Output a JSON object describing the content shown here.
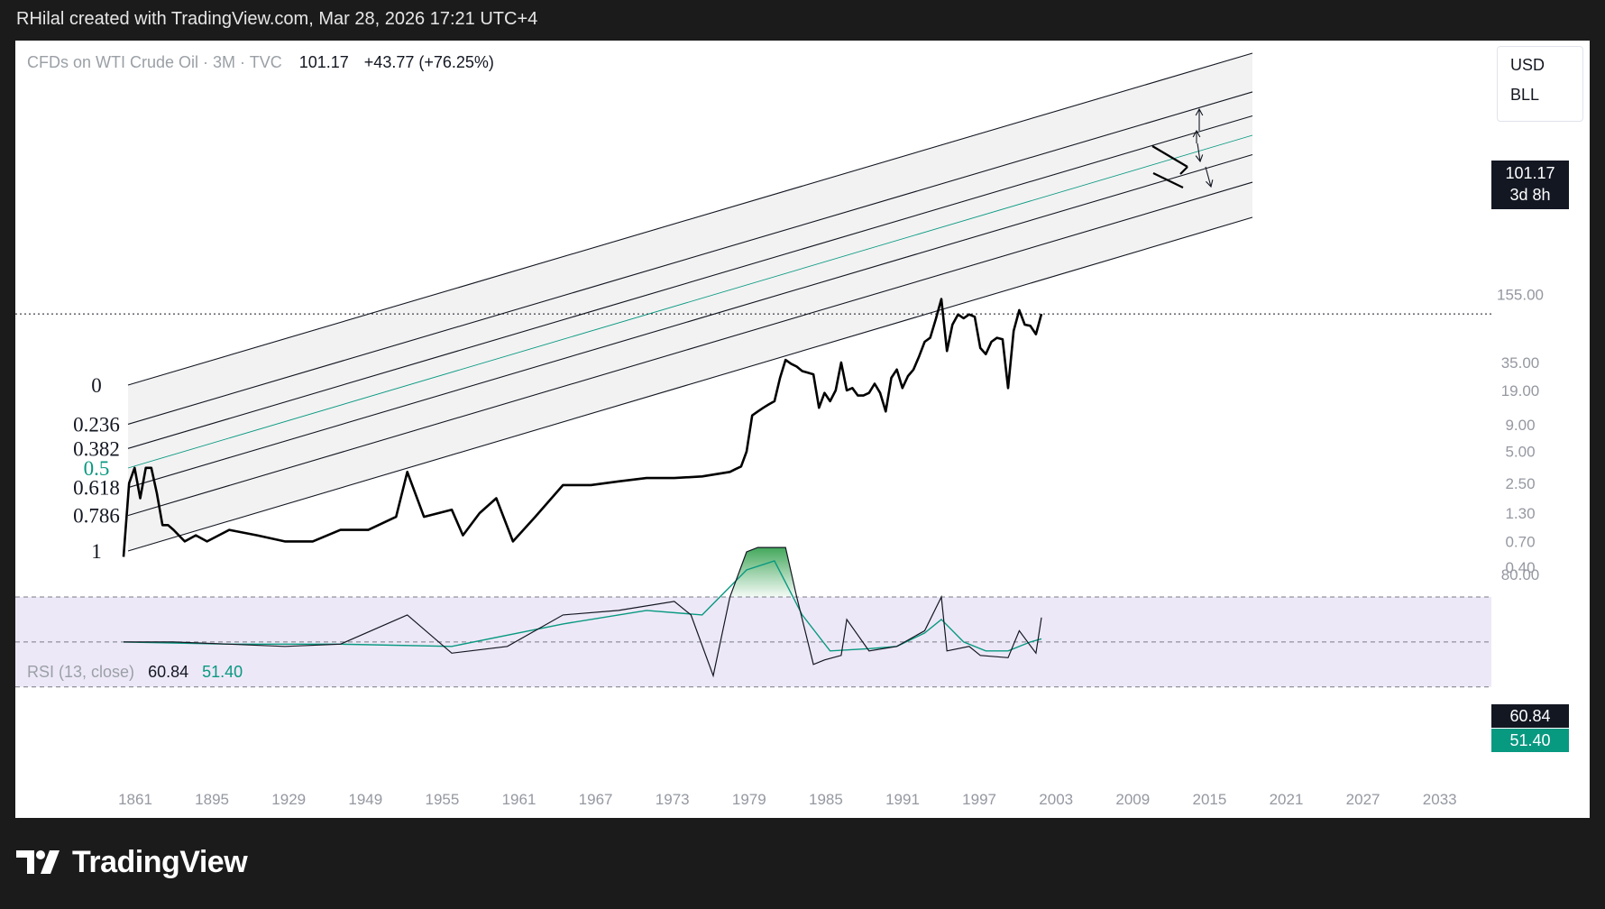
{
  "header": {
    "caption": "RHilal created with TradingView.com, Mar 28, 2026 17:21 UTC+4"
  },
  "legend": {
    "symbol": "CFDs on WTI Crude Oil · 3M · TVC",
    "price": "101.17",
    "change": "+43.77 (+76.25%)"
  },
  "unit_box": {
    "currency": "USD",
    "unit": "BLL"
  },
  "price_label": {
    "price": "101.17",
    "countdown": "3d 8h"
  },
  "rsi": {
    "label": "RSI (13, close)",
    "value": "60.84",
    "ma": "51.40",
    "level": "80.00"
  },
  "brand": {
    "name": "TradingView"
  },
  "colors": {
    "background": "#1b1b1b",
    "panel": "#ffffff",
    "price": "#000000",
    "midline": "#089981",
    "band_fill": "#f2f2f2",
    "rsi_band": "#ede8f7",
    "rsi_fill": "#2e9e4a"
  },
  "chart_data": [
    {
      "type": "line",
      "title": "CFDs on WTI Crude Oil · 3M · TVC",
      "scale": "log",
      "y_ticks": [
        "155.00",
        "35.00",
        "19.00",
        "9.00",
        "5.00",
        "2.50",
        "1.30",
        "0.70",
        "0.40"
      ],
      "x_ticks": [
        "1861",
        "1895",
        "1929",
        "1949",
        "1955",
        "1961",
        "1967",
        "1973",
        "1979",
        "1985",
        "1991",
        "1997",
        "2003",
        "2009",
        "2015",
        "2021",
        "2027",
        "2033"
      ],
      "fib_channel_levels": [
        "0",
        "0.236",
        "0.382",
        "0.5",
        "0.618",
        "0.786",
        "1"
      ],
      "series": [
        {
          "x": [
            1861,
            1862,
            1863,
            1864,
            1865,
            1866,
            1867,
            1868,
            1869,
            1870,
            1872,
            1874,
            1876,
            1880,
            1885,
            1890,
            1895,
            1900,
            1905,
            1910,
            1912,
            1915,
            1920,
            1922,
            1925,
            1928,
            1931,
            1935,
            1940,
            1945,
            1950,
            1955,
            1960,
            1965,
            1970,
            1971,
            1972,
            1973,
            1974,
            1975,
            1976,
            1977,
            1978,
            1979,
            1980,
            1981,
            1982,
            1983,
            1984,
            1985,
            1986,
            1987,
            1988,
            1989,
            1990,
            1991,
            1992,
            1993,
            1994,
            1995,
            1996,
            1997,
            1998,
            1999,
            2000,
            2001,
            2002,
            2003,
            2004,
            2005,
            2006,
            2007,
            2008,
            2009,
            2010,
            2011,
            2012,
            2013,
            2014,
            2015,
            2016,
            2017,
            2018,
            2019,
            2020,
            2021,
            2022,
            2023,
            2024,
            2025,
            2026
          ],
          "y": [
            0.5,
            2.5,
            3.5,
            1.8,
            3.5,
            3.5,
            2.0,
            1.0,
            1.0,
            0.9,
            0.7,
            0.8,
            0.7,
            0.9,
            0.8,
            0.7,
            0.7,
            0.9,
            0.9,
            1.2,
            3.2,
            1.2,
            1.4,
            0.8,
            1.3,
            1.8,
            0.7,
            1.2,
            2.4,
            2.4,
            2.6,
            2.8,
            2.8,
            2.9,
            3.2,
            3.4,
            3.6,
            5.0,
            11.0,
            12.0,
            13.0,
            14.0,
            15.0,
            25.0,
            37.0,
            34.0,
            32.0,
            29.0,
            28.0,
            27.0,
            13.0,
            18.0,
            15.0,
            19.0,
            35.0,
            19.0,
            20.0,
            17.0,
            17.0,
            18.0,
            22.0,
            18.0,
            12.0,
            25.0,
            30.0,
            20.0,
            26.0,
            30.0,
            40.0,
            55.0,
            60.0,
            90.0,
            140.0,
            45.0,
            80.0,
            100.0,
            92.0,
            100.0,
            95.0,
            48.0,
            42.0,
            55.0,
            60.0,
            58.0,
            20.0,
            70.0,
            110.0,
            80.0,
            78.0,
            65.0,
            101.17
          ]
        }
      ]
    },
    {
      "type": "line",
      "title": "RSI (13, close)",
      "ylim": [
        0,
        100
      ],
      "y_ticks": [
        "80.00"
      ],
      "series": [
        {
          "x": [
            1861,
            1870,
            1880,
            1890,
            1900,
            1912,
            1920,
            1930,
            1940,
            1950,
            1960,
            1963,
            1967,
            1970,
            1973,
            1975,
            1980,
            1982,
            1985,
            1987,
            1990,
            1991,
            1995,
            2000,
            2005,
            2008,
            2009,
            2013,
            2015,
            2020,
            2022,
            2025,
            2026
          ],
          "y": [
            50,
            50,
            49,
            48,
            49,
            62,
            45,
            48,
            62,
            64,
            68,
            62,
            35,
            70,
            90,
            92,
            92,
            70,
            40,
            42,
            44,
            60,
            46,
            48,
            55,
            70,
            46,
            48,
            44,
            43,
            55,
            45,
            60.84
          ]
        },
        {
          "x": [
            1861,
            1880,
            1900,
            1920,
            1940,
            1955,
            1965,
            1973,
            1978,
            1983,
            1988,
            1995,
            2000,
            2005,
            2008,
            2012,
            2016,
            2020,
            2024,
            2026
          ],
          "y": [
            50,
            49,
            49,
            48,
            58,
            64,
            62,
            82,
            86,
            62,
            46,
            47,
            48,
            54,
            60,
            50,
            46,
            46,
            50,
            51.4
          ]
        }
      ]
    }
  ]
}
